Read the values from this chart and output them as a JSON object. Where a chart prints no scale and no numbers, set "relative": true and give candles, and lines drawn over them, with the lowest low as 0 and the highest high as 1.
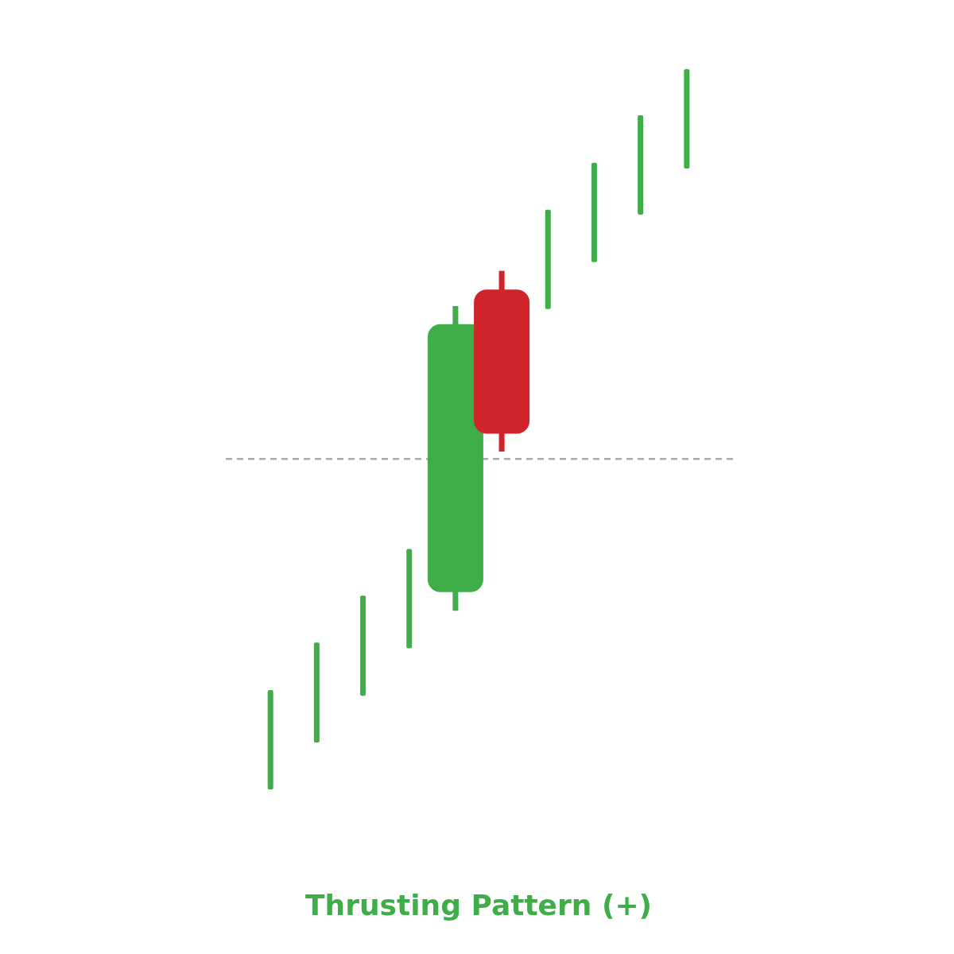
{
  "chart_data": {
    "type": "candlestick",
    "title": "Thrusting Pattern (+)",
    "relative": true,
    "categories": [
      null,
      null,
      null,
      null,
      null,
      null,
      null,
      null,
      null,
      null
    ],
    "ohlc": [
      [
        0,
        0.138,
        0,
        0.138
      ],
      [
        0.065,
        0.204,
        0.065,
        0.204
      ],
      [
        0.13,
        0.269,
        0.13,
        0.269
      ],
      [
        0.196,
        0.334,
        0.196,
        0.334
      ],
      [
        0.274,
        0.671,
        0.248,
        0.646
      ],
      [
        0.694,
        0.72,
        0.469,
        0.494
      ],
      [
        0.667,
        0.805,
        0.667,
        0.805
      ],
      [
        0.732,
        0.87,
        0.732,
        0.87
      ],
      [
        0.798,
        0.936,
        0.798,
        0.936
      ],
      [
        0.862,
        1,
        0.862,
        1
      ]
    ],
    "colors": [
      "#3fae49",
      "#3fae49",
      "#3fae49",
      "#3fae49",
      "#3fae49",
      "#d0232a",
      "#3fae49",
      "#3fae49",
      "#3fae49",
      "#3fae49"
    ],
    "ref_lines": [
      {
        "axis": "y",
        "value": 0.459,
        "color": "#aaaaaa",
        "line_style": "dashed"
      }
    ]
  }
}
